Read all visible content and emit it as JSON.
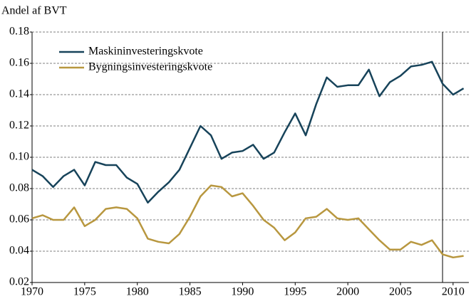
{
  "chart_data": {
    "type": "line",
    "y_label": "Andel af BVT",
    "x": [
      1970,
      1971,
      1972,
      1973,
      1974,
      1975,
      1976,
      1977,
      1978,
      1979,
      1980,
      1981,
      1982,
      1983,
      1984,
      1985,
      1986,
      1987,
      1988,
      1989,
      1990,
      1991,
      1992,
      1993,
      1994,
      1995,
      1996,
      1997,
      1998,
      1999,
      2000,
      2001,
      2002,
      2003,
      2004,
      2005,
      2006,
      2007,
      2008,
      2009,
      2010,
      2011
    ],
    "series": [
      {
        "name": "Maskininvesteringskvote",
        "color": "#17435a",
        "values": [
          0.092,
          0.088,
          0.081,
          0.088,
          0.092,
          0.082,
          0.097,
          0.095,
          0.095,
          0.087,
          0.083,
          0.071,
          0.078,
          0.084,
          0.092,
          0.106,
          0.12,
          0.114,
          0.099,
          0.103,
          0.104,
          0.108,
          0.099,
          0.103,
          0.116,
          0.128,
          0.114,
          0.134,
          0.151,
          0.145,
          0.146,
          0.146,
          0.156,
          0.139,
          0.148,
          0.152,
          0.158,
          0.159,
          0.161,
          0.147,
          0.14,
          0.144
        ]
      },
      {
        "name": "Bygningsinvesteringskvote",
        "color": "#b8973f",
        "values": [
          0.061,
          0.063,
          0.06,
          0.06,
          0.068,
          0.056,
          0.06,
          0.067,
          0.068,
          0.067,
          0.061,
          0.048,
          0.046,
          0.045,
          0.051,
          0.062,
          0.075,
          0.082,
          0.081,
          0.075,
          0.077,
          0.069,
          0.06,
          0.055,
          0.047,
          0.052,
          0.061,
          0.062,
          0.067,
          0.061,
          0.06,
          0.061,
          0.054,
          0.047,
          0.041,
          0.041,
          0.046,
          0.044,
          0.047,
          0.038,
          0.036,
          0.037
        ]
      }
    ],
    "xlim": [
      1970,
      2011.5
    ],
    "xticks": [
      1970,
      1975,
      1980,
      1985,
      1990,
      1995,
      2000,
      2005,
      2010
    ],
    "ylim": [
      0.02,
      0.18
    ],
    "yticks": [
      0.02,
      0.04,
      0.06,
      0.08,
      {
        "value": 0.1,
        "label": "0.10"
      },
      0.12,
      0.14,
      0.16,
      0.18
    ],
    "vline": 2009,
    "grid": true,
    "legend": "upper left"
  }
}
